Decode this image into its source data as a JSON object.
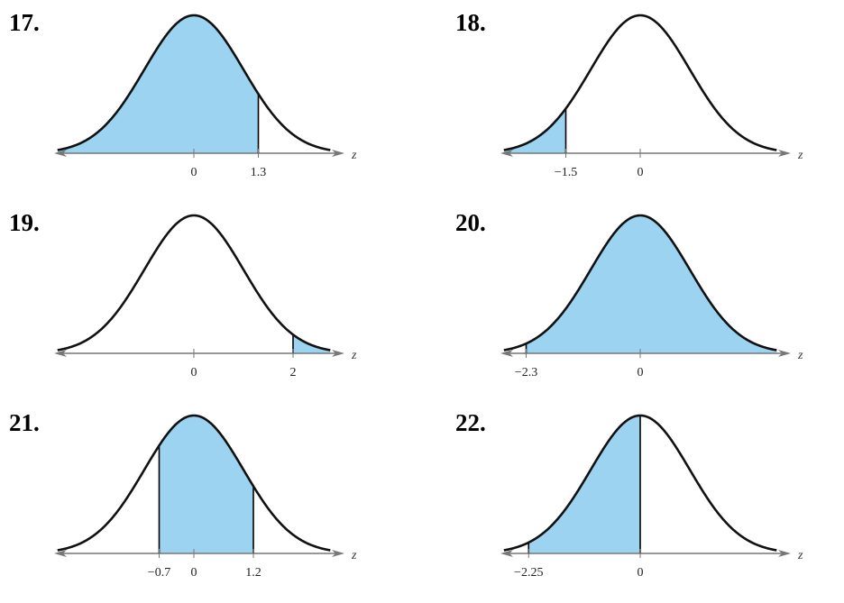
{
  "chart_data": [
    {
      "type": "area",
      "number": "17.",
      "xlabel": "z",
      "ticks": [
        {
          "value": 0,
          "label": "0"
        },
        {
          "value": 1.3,
          "label": "1.3"
        }
      ],
      "shaded": [
        {
          "from": null,
          "to": 1.3
        }
      ],
      "boundaries": [
        1.3
      ],
      "fill_color": "#9cd3f0"
    },
    {
      "type": "area",
      "number": "18.",
      "xlabel": "z",
      "ticks": [
        {
          "value": -1.5,
          "label": "−1.5"
        },
        {
          "value": 0,
          "label": "0"
        }
      ],
      "shaded": [
        {
          "from": null,
          "to": -1.5
        }
      ],
      "boundaries": [
        -1.5
      ],
      "fill_color": "#9cd3f0"
    },
    {
      "type": "area",
      "number": "19.",
      "xlabel": "z",
      "ticks": [
        {
          "value": 0,
          "label": "0"
        },
        {
          "value": 2,
          "label": "2"
        }
      ],
      "shaded": [
        {
          "from": 2,
          "to": null
        }
      ],
      "boundaries": [
        2
      ],
      "fill_color": "#9cd3f0"
    },
    {
      "type": "area",
      "number": "20.",
      "xlabel": "z",
      "ticks": [
        {
          "value": -2.3,
          "label": "−2.3"
        },
        {
          "value": 0,
          "label": "0"
        }
      ],
      "shaded": [
        {
          "from": -2.3,
          "to": null
        }
      ],
      "boundaries": [
        -2.3
      ],
      "fill_color": "#9cd3f0"
    },
    {
      "type": "area",
      "number": "21.",
      "xlabel": "z",
      "ticks": [
        {
          "value": -0.7,
          "label": "−0.7"
        },
        {
          "value": 0,
          "label": "0"
        },
        {
          "value": 1.2,
          "label": "1.2"
        }
      ],
      "shaded": [
        {
          "from": -0.7,
          "to": 1.2
        }
      ],
      "boundaries": [
        -0.7,
        1.2
      ],
      "fill_color": "#9cd3f0"
    },
    {
      "type": "area",
      "number": "22.",
      "xlabel": "z",
      "ticks": [
        {
          "value": -2.25,
          "label": "−2.25"
        },
        {
          "value": 0,
          "label": "0"
        }
      ],
      "shaded": [
        {
          "from": -2.25,
          "to": 0
        }
      ],
      "boundaries": [
        -2.25,
        0
      ],
      "fill_color": "#9cd3f0"
    }
  ]
}
